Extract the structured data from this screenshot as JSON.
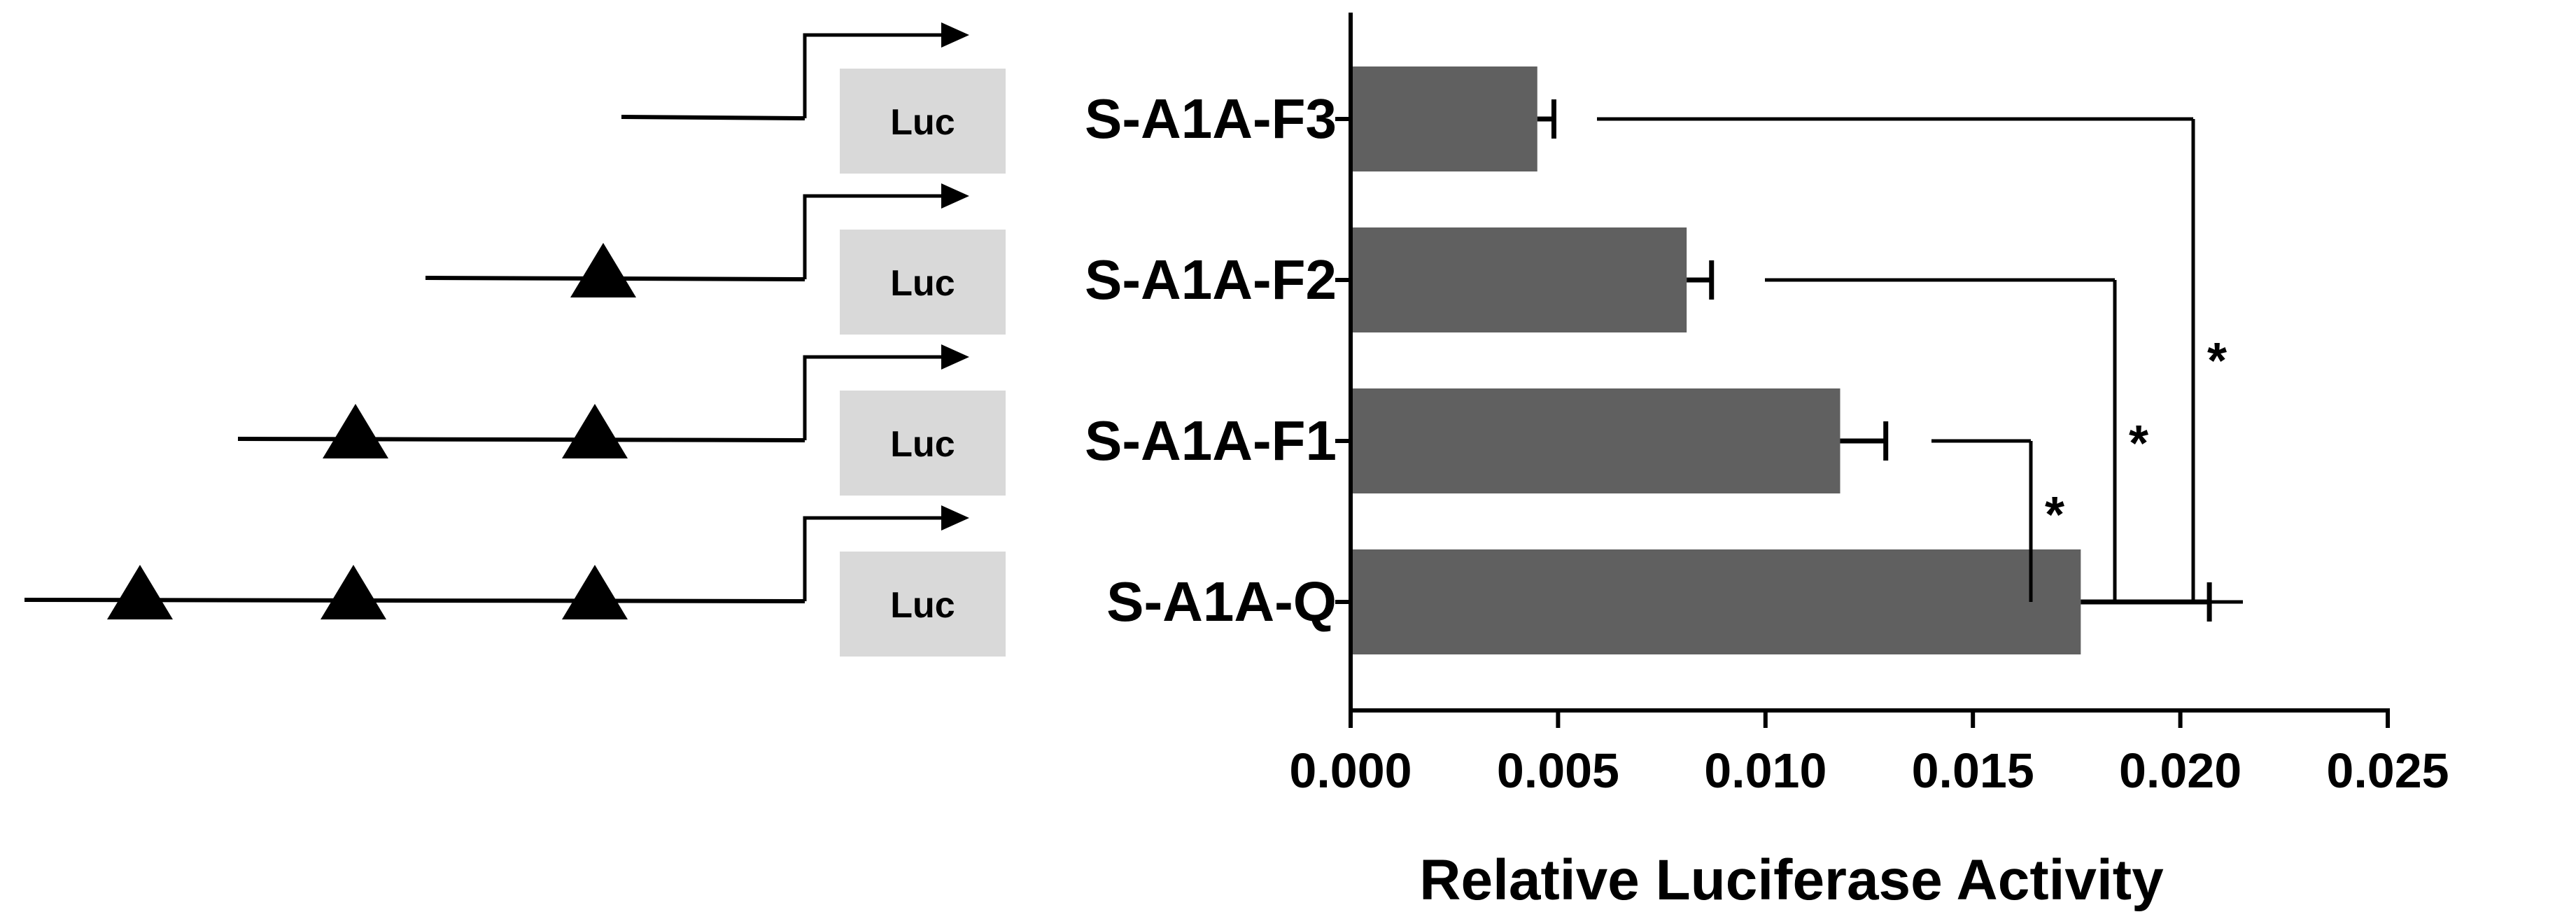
{
  "chart_data": {
    "type": "bar",
    "orientation": "horizontal",
    "categories": [
      "S-A1A-F3",
      "S-A1A-F2",
      "S-A1A-F1",
      "S-A1A-Q"
    ],
    "values": [
      0.0045,
      0.0081,
      0.0118,
      0.0176
    ],
    "errors": [
      0.0004,
      0.0006,
      0.0011,
      0.0031
    ],
    "xlabel": "Relative Luciferase Activity",
    "xlim": [
      0,
      0.025
    ],
    "x_ticks": [
      "0.000",
      "0.005",
      "0.010",
      "0.015",
      "0.020",
      "0.025"
    ],
    "bar_color": "#606060",
    "grid": false,
    "significance": [
      {
        "from": "S-A1A-Q",
        "to": "S-A1A-F1",
        "label": "*"
      },
      {
        "from": "S-A1A-Q",
        "to": "S-A1A-F2",
        "label": "*"
      },
      {
        "from": "S-A1A-Q",
        "to": "S-A1A-F3",
        "label": "*"
      }
    ]
  },
  "constructs": [
    {
      "name": "S-A1A-F3",
      "reporter": "Luc",
      "sites": 0
    },
    {
      "name": "S-A1A-F2",
      "reporter": "Luc",
      "sites": 1
    },
    {
      "name": "S-A1A-F1",
      "reporter": "Luc",
      "sites": 2
    },
    {
      "name": "S-A1A-Q",
      "reporter": "Luc",
      "sites": 3
    }
  ],
  "colors": {
    "luc_box": "#d9d9d9",
    "bar": "#606060",
    "ink": "#000000"
  }
}
